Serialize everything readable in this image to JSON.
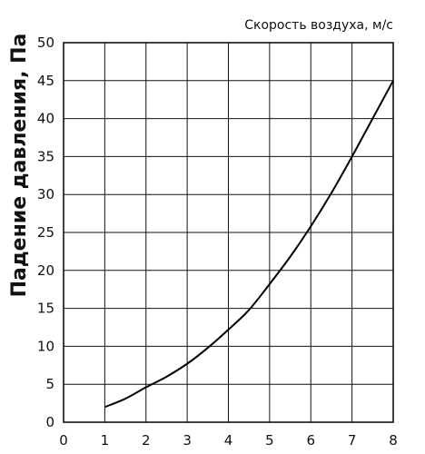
{
  "chart_data": {
    "type": "line",
    "xlabel": "Скорость воздуха, м/с",
    "ylabel": "Падение давления, Па",
    "xlim": [
      0,
      8
    ],
    "ylim": [
      0,
      50
    ],
    "x_ticks": [
      "0",
      "1",
      "2",
      "3",
      "4",
      "5",
      "6",
      "7",
      "8"
    ],
    "y_ticks": [
      "0",
      "5",
      "10",
      "15",
      "20",
      "25",
      "30",
      "35",
      "40",
      "45",
      "50"
    ],
    "grid": true,
    "series": [
      {
        "x": [
          1,
          1.5,
          2,
          2.5,
          3,
          3.5,
          4,
          4.5,
          5,
          5.5,
          6,
          6.5,
          7,
          7.5,
          8
        ],
        "y": [
          2,
          3.1,
          4.6,
          6,
          7.7,
          9.8,
          12.2,
          14.8,
          18.2,
          21.8,
          25.8,
          30.2,
          35,
          40,
          45
        ]
      }
    ],
    "colors": {
      "line": "#000000",
      "grid": "#111111",
      "background": "#ffffff"
    }
  }
}
